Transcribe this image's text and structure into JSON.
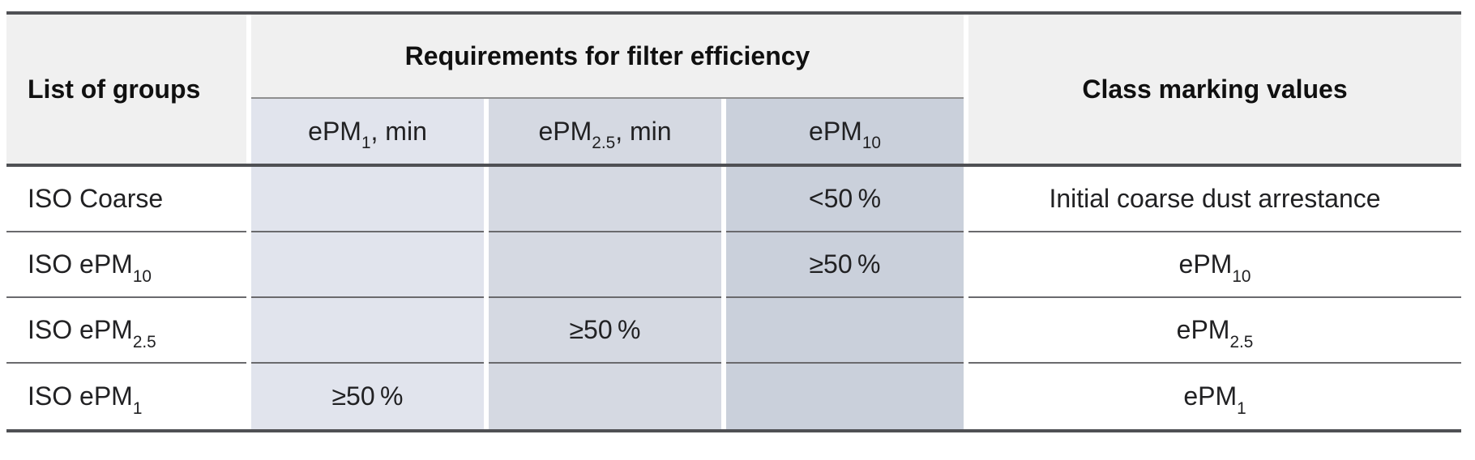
{
  "table": {
    "header": {
      "list_of_groups": "List of groups",
      "requirements_group": "Requirements for filter efficiency",
      "class_marking": "Class marking values",
      "sub_columns": [
        {
          "pre": "ePM",
          "sub": "1",
          "post": ", min"
        },
        {
          "pre": "ePM",
          "sub": "2.5",
          "post": ", min"
        },
        {
          "pre": "ePM",
          "sub": "10",
          "post": ""
        }
      ]
    },
    "rows": [
      {
        "group": {
          "pre": "ISO Coarse",
          "sub": "",
          "post": ""
        },
        "epm1_min": "",
        "epm2_5_min": "",
        "epm10": "<50 %",
        "class_marking": {
          "pre": "Initial coarse dust arrestance",
          "sub": ""
        }
      },
      {
        "group": {
          "pre": "ISO ePM",
          "sub": "10",
          "post": ""
        },
        "epm1_min": "",
        "epm2_5_min": "",
        "epm10": "≥50 %",
        "class_marking": {
          "pre": "ePM",
          "sub": "10"
        }
      },
      {
        "group": {
          "pre": "ISO ePM",
          "sub": "2.5",
          "post": ""
        },
        "epm1_min": "",
        "epm2_5_min": "≥50 %",
        "epm10": "",
        "class_marking": {
          "pre": "ePM",
          "sub": "2.5"
        }
      },
      {
        "group": {
          "pre": "ISO ePM",
          "sub": "1",
          "post": ""
        },
        "epm1_min": "≥50 %",
        "epm2_5_min": "",
        "epm10": "",
        "class_marking": {
          "pre": "ePM",
          "sub": "1"
        }
      }
    ],
    "colors": {
      "header_bg": "#f0f0f0",
      "epm1_column_bg": "#e1e4ed",
      "epm2_5_column_bg": "#d5d9e2",
      "epm10_column_bg": "#cad0db",
      "thick_border": "#4f5054",
      "row_separator": "#6a6a6d",
      "subheader_divider": "#8f8f8f"
    }
  }
}
